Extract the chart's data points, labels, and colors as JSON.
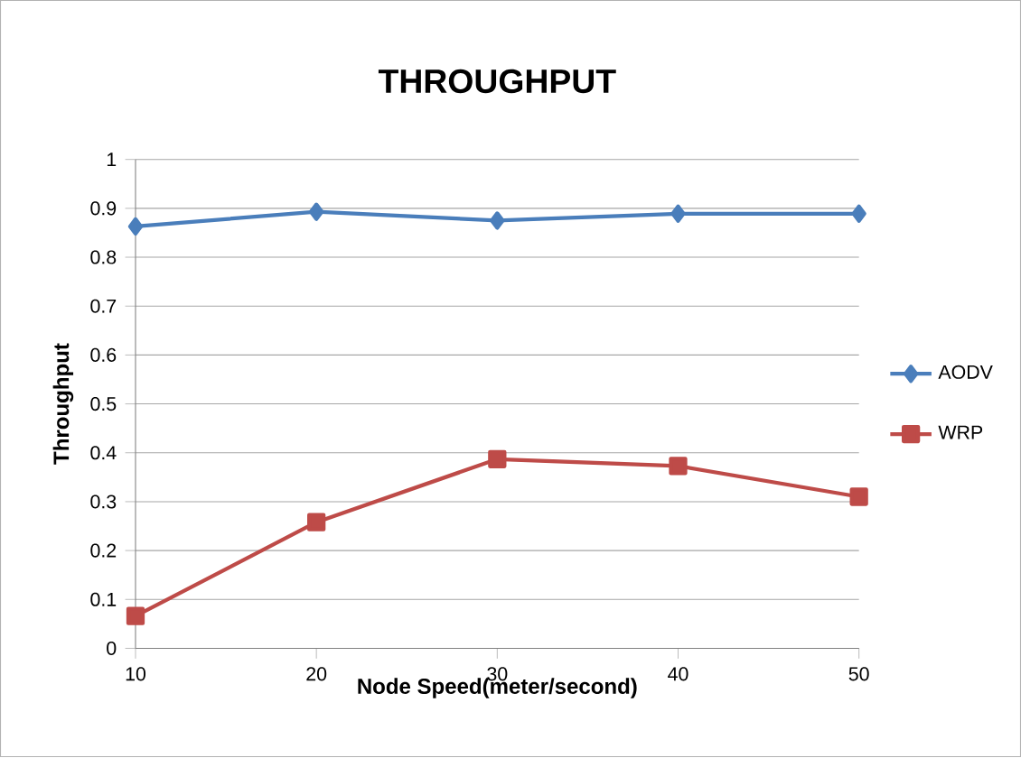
{
  "chart_data": {
    "type": "line",
    "title": "THROUGHPUT",
    "xlabel": "Node Speed(meter/second)",
    "ylabel": "Throughput",
    "x": [
      10,
      20,
      30,
      40,
      50
    ],
    "series": [
      {
        "name": "AODV",
        "color": "#4a7ebb",
        "marker": "diamond",
        "values": [
          0.863,
          0.893,
          0.875,
          0.889,
          0.889
        ]
      },
      {
        "name": "WRP",
        "color": "#be4b48",
        "marker": "square",
        "values": [
          0.066,
          0.258,
          0.387,
          0.373,
          0.31
        ]
      }
    ],
    "xlim": [
      10,
      50
    ],
    "xticks": [
      10,
      20,
      30,
      40,
      50
    ],
    "ylim": [
      0,
      1
    ],
    "yticks": [
      0,
      0.1,
      0.2,
      0.3,
      0.4,
      0.5,
      0.6,
      0.7,
      0.8,
      0.9,
      1
    ],
    "grid": "y",
    "legend": "right",
    "line_style": "solid"
  }
}
